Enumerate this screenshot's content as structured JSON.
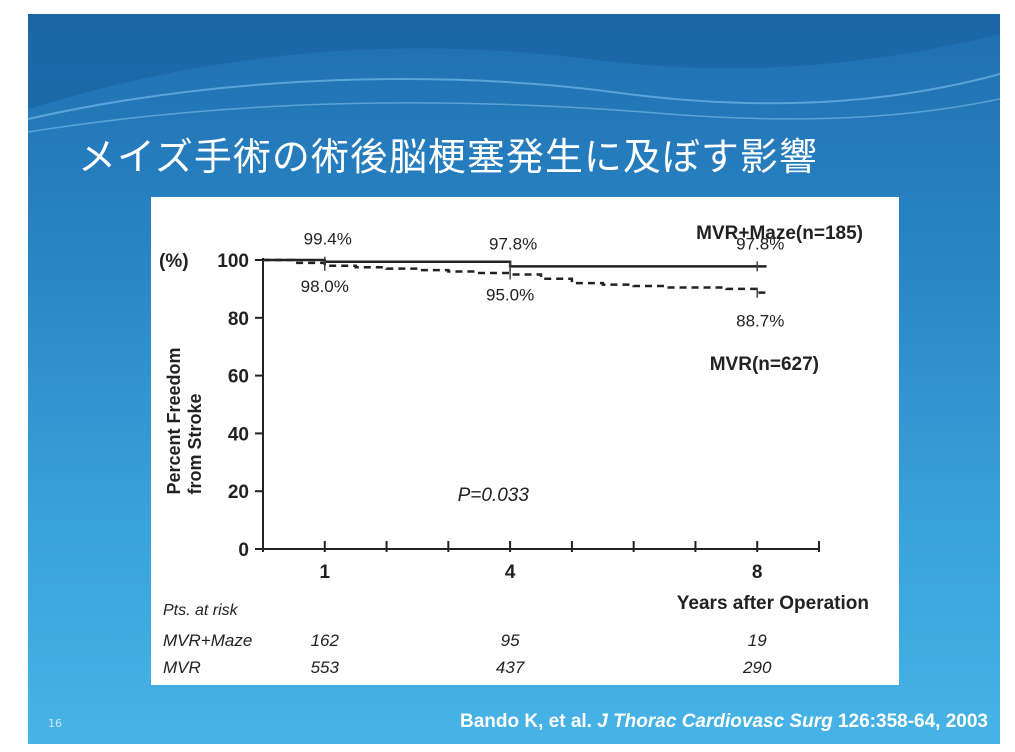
{
  "slide": {
    "title": "メイズ手術の術後脳梗塞発生に及ぼす影響",
    "slide_number": "16",
    "citation": {
      "authors": "Bando K, et al.",
      "journal": "J Thorac Cardiovasc Surg",
      "reference": "126:358-64, 2003"
    },
    "colors": {
      "background_top": "#1f6fb0",
      "background_bottom": "#47b3e6",
      "title": "#ffffff"
    }
  },
  "chart_data": {
    "type": "line",
    "ylabel_lines": [
      "Percent Freedom",
      "from Stroke"
    ],
    "y_unit_label": "(%)",
    "xlabel": "Years after Operation",
    "ylim": [
      0,
      100
    ],
    "xlim": [
      0,
      9
    ],
    "y_ticks": [
      0,
      20,
      40,
      60,
      80,
      100
    ],
    "y_tick_labels": [
      "0",
      "20",
      "40",
      "60",
      "80",
      "100"
    ],
    "x_ticks": [
      0,
      1,
      2,
      3,
      4,
      5,
      6,
      7,
      8,
      9
    ],
    "x_tick_labels": [
      {
        "x": 1,
        "label": "1"
      },
      {
        "x": 4,
        "label": "4"
      },
      {
        "x": 8,
        "label": "8"
      }
    ],
    "grid": false,
    "series": [
      {
        "name": "MVR+Maze",
        "legend_label": "MVR+Maze(n=185)",
        "style": "solid",
        "color": "#222222",
        "x": [
          0,
          1,
          2,
          3,
          3.9,
          4,
          5,
          6,
          7,
          8,
          8.15
        ],
        "y": [
          100,
          99.4,
          99.4,
          99.4,
          99.4,
          97.8,
          97.8,
          97.8,
          97.8,
          97.8,
          97.8
        ],
        "point_labels": [
          {
            "x": 1,
            "y": 99.4,
            "text": "99.4%"
          },
          {
            "x": 4,
            "y": 97.8,
            "text": "97.8%"
          },
          {
            "x": 8,
            "y": 97.8,
            "text": "97.8%"
          }
        ]
      },
      {
        "name": "MVR",
        "legend_label": "MVR(n=627)",
        "style": "dashed",
        "color": "#222222",
        "x": [
          0,
          0.5,
          1,
          1.5,
          2,
          2.5,
          3,
          3.5,
          4,
          4.5,
          5,
          5.5,
          6,
          6.5,
          7,
          7.5,
          8,
          8.15
        ],
        "y": [
          100,
          99.0,
          98.0,
          97.5,
          97.0,
          96.5,
          96.0,
          95.5,
          95.0,
          93.5,
          92.0,
          91.5,
          91.0,
          90.5,
          90.5,
          90.0,
          88.7,
          88.7
        ],
        "point_labels": [
          {
            "x": 1,
            "y": 98.0,
            "text": "98.0%"
          },
          {
            "x": 4,
            "y": 95.0,
            "text": "95.0%"
          },
          {
            "x": 8,
            "y": 88.7,
            "text": "88.7%"
          }
        ]
      }
    ],
    "annotation": "P=0.033",
    "at_risk": {
      "heading": "Pts. at risk",
      "rows": [
        {
          "label": "MVR+Maze",
          "values": [
            "162",
            "95",
            "19"
          ]
        },
        {
          "label": "MVR",
          "values": [
            "553",
            "437",
            "290"
          ]
        }
      ],
      "at_x": [
        1,
        4,
        8
      ]
    }
  }
}
